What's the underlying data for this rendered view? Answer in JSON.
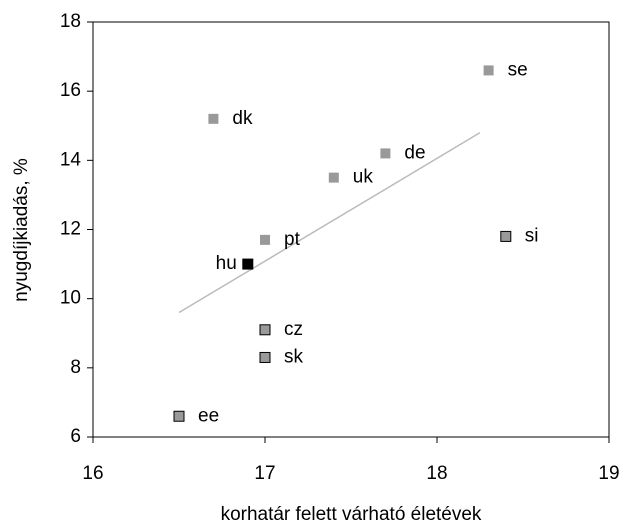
{
  "chart_data": {
    "type": "scatter",
    "xlabel": "korhatár felett várható életévek",
    "ylabel": "nyugdíjkiadás, %",
    "xlim": [
      16,
      19
    ],
    "xticks": [
      16,
      17,
      18,
      19
    ],
    "ylim": [
      6,
      18
    ],
    "yticks": [
      6,
      8,
      10,
      12,
      14,
      16,
      18
    ],
    "labels": [
      "se",
      "dk",
      "de",
      "uk",
      "pt",
      "hu",
      "si",
      "cz",
      "sk",
      "ee"
    ],
    "x": [
      18.3,
      16.7,
      17.7,
      17.4,
      17.0,
      16.9,
      18.4,
      17.0,
      17.0,
      16.5
    ],
    "y": [
      16.6,
      15.2,
      14.2,
      13.5,
      11.7,
      11.0,
      11.8,
      9.1,
      8.3,
      6.6
    ],
    "colors": [
      "#999999",
      "#999999",
      "#999999",
      "#999999",
      "#999999",
      "#000000",
      "#999999",
      "#999999",
      "#999999",
      "#999999"
    ],
    "edge": [
      false,
      false,
      false,
      false,
      false,
      true,
      true,
      true,
      true,
      true
    ],
    "label_position": [
      "right",
      "right",
      "right",
      "right",
      "right",
      "left",
      "right",
      "right",
      "right",
      "right"
    ],
    "trendline": {
      "x": [
        16.5,
        18.25
      ],
      "y": [
        9.6,
        14.8
      ],
      "color": "#bbbbbb"
    }
  }
}
